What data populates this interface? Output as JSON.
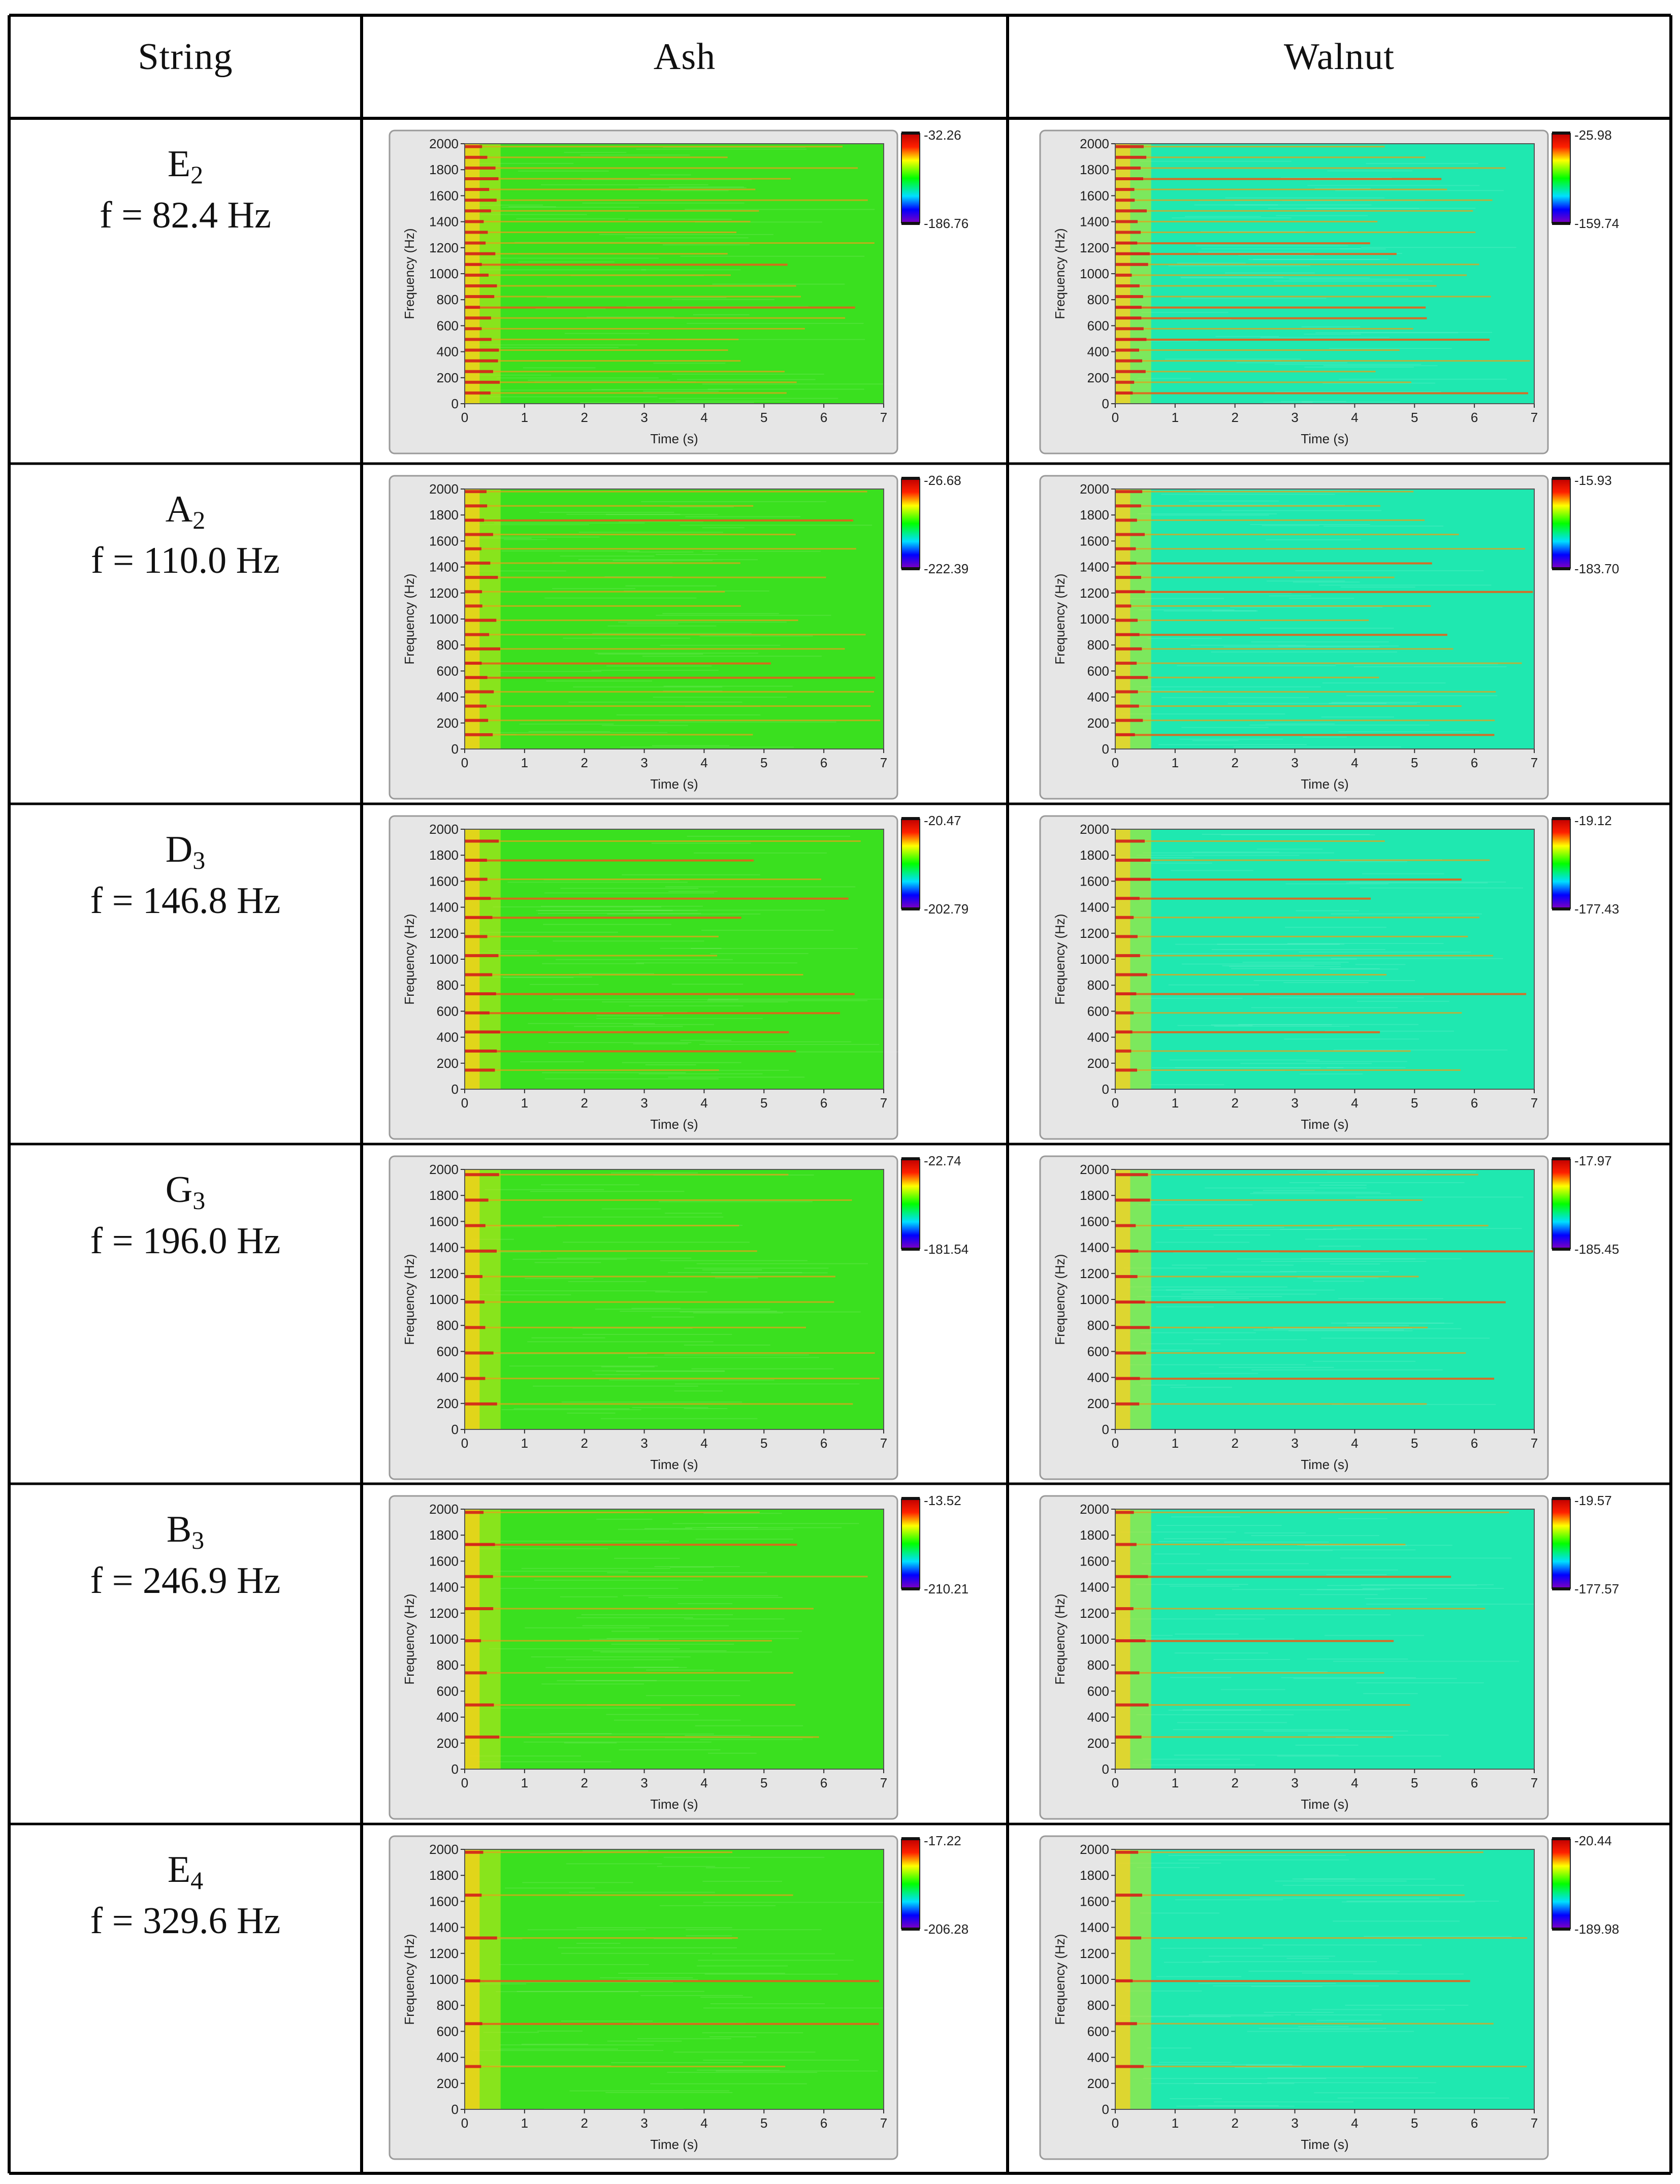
{
  "table": {
    "headers": [
      "String",
      "Ash",
      "Walnut"
    ],
    "rows": [
      {
        "note": "E",
        "sub": "2",
        "freq": "f = 82.4 Hz",
        "ash": {
          "max": "-32.26",
          "min": "-186.76"
        },
        "walnut": {
          "max": "-25.98",
          "min": "-159.74"
        }
      },
      {
        "note": "A",
        "sub": "2",
        "freq": "f = 110.0 Hz",
        "ash": {
          "max": "-26.68",
          "min": "-222.39"
        },
        "walnut": {
          "max": "-15.93",
          "min": "-183.70"
        }
      },
      {
        "note": "D",
        "sub": "3",
        "freq": "f = 146.8 Hz",
        "ash": {
          "max": "-20.47",
          "min": "-202.79"
        },
        "walnut": {
          "max": "-19.12",
          "min": "-177.43"
        }
      },
      {
        "note": "G",
        "sub": "3",
        "freq": "f = 196.0 Hz",
        "ash": {
          "max": "-22.74",
          "min": "-181.54"
        },
        "walnut": {
          "max": "-17.97",
          "min": "-185.45"
        }
      },
      {
        "note": "B",
        "sub": "3",
        "freq": "f = 246.9 Hz",
        "ash": {
          "max": "-13.52",
          "min": "-210.21"
        },
        "walnut": {
          "max": "-19.57",
          "min": "-177.57"
        }
      },
      {
        "note": "E",
        "sub": "4",
        "freq": "f = 329.6 Hz",
        "ash": {
          "max": "-17.22",
          "min": "-206.28"
        },
        "walnut": {
          "max": "-20.44",
          "min": "-189.98"
        }
      }
    ]
  },
  "spectrogram": {
    "x_label": "Time (s)",
    "y_label": "Frequency (Hz)",
    "x_ticks": [
      "0",
      "1",
      "2",
      "3",
      "4",
      "5",
      "6",
      "7"
    ],
    "y_ticks": [
      "0",
      "200",
      "400",
      "600",
      "800",
      "1000",
      "1200",
      "1400",
      "1600",
      "1800",
      "2000"
    ],
    "x_range": [
      0,
      7
    ],
    "y_range": [
      0,
      2000
    ]
  },
  "colors": {
    "ash_field": "#3ae01f",
    "walnut_field": "#1fe8b0",
    "panel_bg": "#e6e6e6",
    "harmonic": "#e5a21a",
    "attack": "#ffd21a"
  }
}
